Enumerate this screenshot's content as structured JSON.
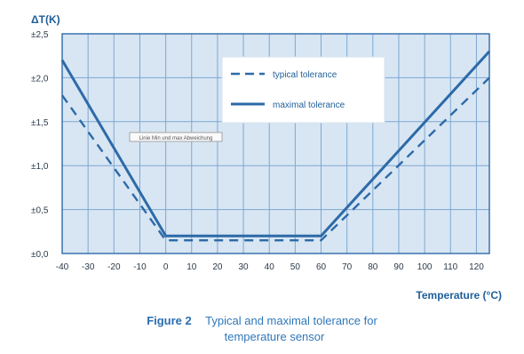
{
  "chart_data": {
    "type": "line",
    "y_axis_title": "ΔT(K)",
    "x_axis_title": "Temperature (°C)",
    "x_ticks": [
      "-40",
      "-30",
      "-20",
      "-10",
      "0",
      "10",
      "20",
      "30",
      "40",
      "50",
      "60",
      "70",
      "80",
      "90",
      "100",
      "110",
      "120"
    ],
    "y_ticks": [
      "±0,0",
      "±0,5",
      "±1,0",
      "±1,5",
      "±2,0",
      "±2,5"
    ],
    "xlim": [
      -40,
      125
    ],
    "ylim": [
      0,
      2.5
    ],
    "grid": true,
    "legend_position": "top-right",
    "series": [
      {
        "name": "typical tolerance",
        "style": "dashed",
        "x": [
          -40,
          0,
          60,
          125
        ],
        "y": [
          1.8,
          0.15,
          0.15,
          2.0
        ]
      },
      {
        "name": "maximal tolerance",
        "style": "solid",
        "x": [
          -40,
          0,
          60,
          125
        ],
        "y": [
          2.2,
          0.2,
          0.2,
          2.3
        ]
      }
    ],
    "colors": {
      "line": "#2d6aa8",
      "plot_bg": "#d8e6f3",
      "grid": "#7ca7d3",
      "frame": "#2d6aa8"
    }
  },
  "caption": {
    "label": "Figure 2",
    "line1": "Typical and maximal tolerance for",
    "line2": "temperature sensor"
  },
  "overlay_tooltip": {
    "text": "Linie Min und max Abweichung"
  }
}
